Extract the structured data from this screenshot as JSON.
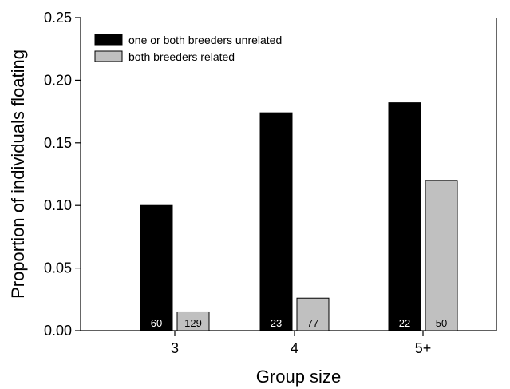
{
  "chart_data": {
    "type": "bar",
    "title": "",
    "xlabel": "Group size",
    "ylabel": "Proportion of individuals floating",
    "ylim": [
      0,
      0.25
    ],
    "yticks": [
      "0.00",
      "0.05",
      "0.10",
      "0.15",
      "0.20",
      "0.25"
    ],
    "categories": [
      "3",
      "4",
      "5+"
    ],
    "grid": false,
    "legend_position": "top-left",
    "series": [
      {
        "name": "one or both breeders unrelated",
        "color": "#000000",
        "values": [
          0.1,
          0.174,
          0.182
        ],
        "sample_sizes": [
          "60",
          "23",
          "22"
        ]
      },
      {
        "name": "both breeders related",
        "color": "#c0c0c0",
        "values": [
          0.015,
          0.026,
          0.12
        ],
        "sample_sizes": [
          "129",
          "77",
          "50"
        ]
      }
    ]
  }
}
